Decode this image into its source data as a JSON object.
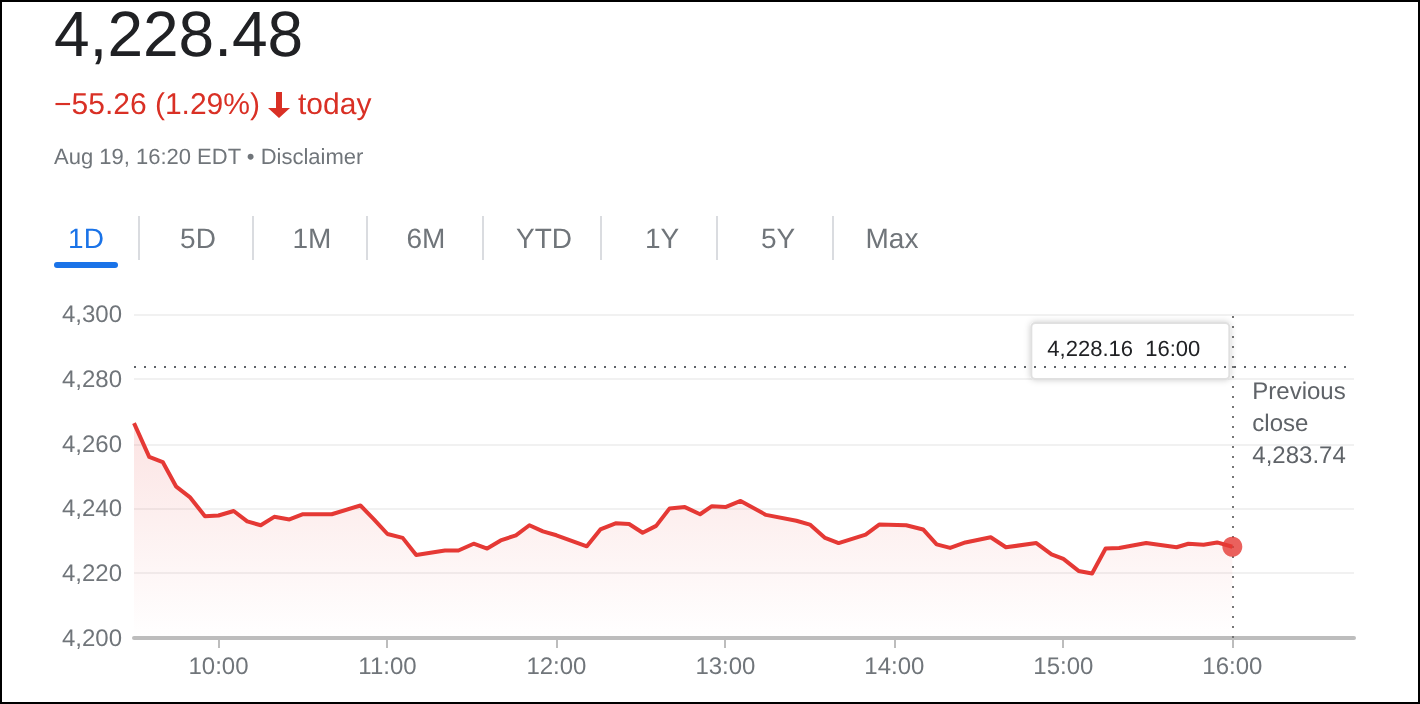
{
  "chart_data": {
    "type": "area",
    "title": "4,228.48",
    "subtitle": "−55.26 (1.29%)",
    "annotations": [
      "today",
      "Aug 19, 16:20 EDT • Disclaimer",
      "1D",
      "5D",
      "1M",
      "6M",
      "YTD",
      "1Y",
      "5Y",
      "Max",
      "4,228.16  16:00"
    ],
    "x": [
      9.5,
      9.59,
      9.67,
      9.75,
      9.83,
      9.92,
      10.0,
      10.09,
      10.17,
      10.25,
      10.33,
      10.42,
      10.5,
      10.67,
      10.84,
      10.92,
      11.0,
      11.09,
      11.17,
      11.34,
      11.42,
      11.51,
      11.59,
      11.67,
      11.76,
      11.84,
      11.92,
      12.0,
      12.18,
      12.26,
      12.35,
      12.43,
      12.51,
      12.59,
      12.67,
      12.76,
      12.85,
      12.92,
      13.0,
      13.09,
      13.24,
      13.42,
      13.5,
      13.59,
      13.67,
      13.83,
      13.91,
      14.07,
      14.17,
      14.25,
      14.33,
      14.42,
      14.57,
      14.66,
      14.84,
      14.93,
      15.0,
      15.09,
      15.17,
      15.25,
      15.33,
      15.49,
      15.67,
      15.74,
      15.83,
      15.91,
      16.0
    ],
    "series": [
      {
        "color": "#e53935",
        "values": [
          4266.3,
          4255.9,
          4254.3,
          4246.7,
          4243.5,
          4237.6,
          4237.8,
          4239.2,
          4236.0,
          4234.8,
          4237.4,
          4236.6,
          4238.2,
          4238.2,
          4240.9,
          4236.6,
          4232.1,
          4230.9,
          4225.6,
          4227.0,
          4227.0,
          4229.1,
          4227.6,
          4230.1,
          4231.7,
          4234.8,
          4232.9,
          4231.7,
          4228.3,
          4233.5,
          4235.4,
          4235.2,
          4232.5,
          4234.6,
          4240.0,
          4240.4,
          4238.2,
          4240.7,
          4240.4,
          4242.3,
          4238.0,
          4236.2,
          4235.0,
          4230.9,
          4229.3,
          4231.9,
          4235.0,
          4234.8,
          4233.5,
          4228.9,
          4227.8,
          4229.5,
          4231.1,
          4228.0,
          4229.3,
          4225.8,
          4224.4,
          4220.7,
          4219.9,
          4227.6,
          4227.8,
          4229.3,
          4228.0,
          4229.1,
          4228.8,
          4229.5,
          4228.16
        ]
      }
    ],
    "xlim": [
      9.5,
      16.72
    ],
    "ylim": [
      4200,
      4300
    ],
    "xticks": [
      {
        "value": 10,
        "label": "10:00"
      },
      {
        "value": 11,
        "label": "11:00"
      },
      {
        "value": 12,
        "label": "12:00"
      },
      {
        "value": 13,
        "label": "13:00"
      },
      {
        "value": 14,
        "label": "14:00"
      },
      {
        "value": 15,
        "label": "15:00"
      },
      {
        "value": 16,
        "label": "16:00"
      }
    ],
    "yticks": [
      {
        "value": 4200,
        "label": "4,200"
      },
      {
        "value": 4220,
        "label": "4,220"
      },
      {
        "value": 4240,
        "label": "4,240"
      },
      {
        "value": 4260,
        "label": "4,260"
      },
      {
        "value": 4280,
        "label": "4,280"
      },
      {
        "value": 4300,
        "label": "4,300"
      }
    ],
    "ref_lines": [
      {
        "axis": "y",
        "value": 4283.74,
        "label": "Previous close 4,283.74",
        "color": "#5f6368",
        "line_style": "dotted"
      },
      {
        "axis": "x",
        "value": 16,
        "label": null,
        "color": "#757575",
        "line_style": "dotted"
      }
    ],
    "grid": "y",
    "marker": "none"
  }
}
